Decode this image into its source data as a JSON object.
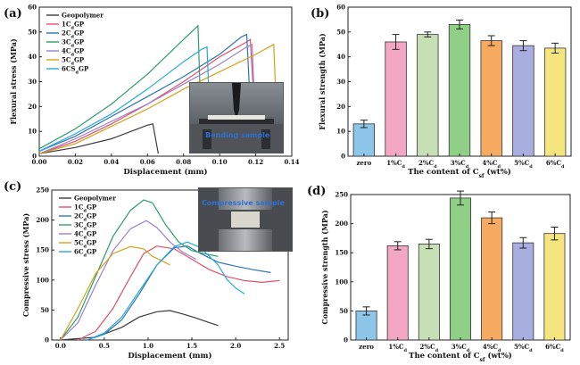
{
  "colors": {
    "zero": "#3a3a3a",
    "c1": "#e0506a",
    "c2": "#2c74b8",
    "c3": "#2e9d6a",
    "c4": "#9b7fd0",
    "c5": "#d6a21a",
    "c6": "#29a9d8",
    "bar_zero": "#8ec6ea",
    "bar_1": "#f4a7c4",
    "bar_2": "#c6dfb4",
    "bar_3": "#8fcf86",
    "bar_4": "#f6aa62",
    "bar_5": "#a9aee0",
    "bar_6": "#f5e57e"
  },
  "photos": {
    "a_label": "Bending sample",
    "c_label": "Compressive sample"
  },
  "chart_data": [
    {
      "panel": "(a)",
      "type": "line",
      "xlabel": "Displacement (mm)",
      "ylabel": "Flexural stress (MPa)",
      "xlim": [
        0,
        0.14
      ],
      "ylim": [
        0,
        60
      ],
      "xticks": [
        "0.00",
        "0.02",
        "0.04",
        "0.06",
        "0.08",
        "0.10",
        "0.12",
        "0.14"
      ],
      "yticks": [
        "0",
        "10",
        "20",
        "30",
        "40",
        "50",
        "60"
      ],
      "legend_position": "top-left",
      "series": [
        {
          "name": "Geopolymer",
          "color_key": "zero",
          "points": [
            [
              0,
              1
            ],
            [
              0.02,
              3.5
            ],
            [
              0.04,
              7
            ],
            [
              0.06,
              12.5
            ],
            [
              0.063,
              13
            ],
            [
              0.066,
              1
            ]
          ]
        },
        {
          "name": "1C_dGP",
          "color_key": "c1",
          "points": [
            [
              0,
              1
            ],
            [
              0.02,
              6
            ],
            [
              0.04,
              13
            ],
            [
              0.06,
              21
            ],
            [
              0.08,
              30
            ],
            [
              0.1,
              40
            ],
            [
              0.115,
              46
            ],
            [
              0.117,
              47
            ],
            [
              0.12,
              10
            ]
          ]
        },
        {
          "name": "2C_dGP",
          "color_key": "c2",
          "points": [
            [
              0,
              2
            ],
            [
              0.02,
              8
            ],
            [
              0.04,
              16
            ],
            [
              0.06,
              24
            ],
            [
              0.08,
              32
            ],
            [
              0.1,
              41
            ],
            [
              0.112,
              48
            ],
            [
              0.115,
              49
            ],
            [
              0.118,
              6
            ]
          ]
        },
        {
          "name": "3C_dGP",
          "color_key": "c3",
          "points": [
            [
              0,
              3
            ],
            [
              0.02,
              11
            ],
            [
              0.04,
              21
            ],
            [
              0.06,
              33
            ],
            [
              0.07,
              40
            ],
            [
              0.08,
              47
            ],
            [
              0.088,
              52.5
            ],
            [
              0.09,
              7
            ]
          ]
        },
        {
          "name": "4C_dGP",
          "color_key": "c4",
          "points": [
            [
              0,
              1
            ],
            [
              0.02,
              7
            ],
            [
              0.04,
              14
            ],
            [
              0.06,
              21
            ],
            [
              0.08,
              29
            ],
            [
              0.1,
              37
            ],
            [
              0.115,
              44
            ],
            [
              0.118,
              45
            ],
            [
              0.12,
              9
            ]
          ]
        },
        {
          "name": "5C_dGP",
          "color_key": "c5",
          "points": [
            [
              0,
              1
            ],
            [
              0.02,
              5
            ],
            [
              0.04,
              12
            ],
            [
              0.06,
              19
            ],
            [
              0.08,
              27
            ],
            [
              0.1,
              34
            ],
            [
              0.12,
              41
            ],
            [
              0.13,
              45
            ],
            [
              0.132,
              8
            ]
          ]
        },
        {
          "name": "6CS_dGP",
          "color_key": "c6",
          "points": [
            [
              0,
              2
            ],
            [
              0.02,
              9
            ],
            [
              0.04,
              17
            ],
            [
              0.06,
              27
            ],
            [
              0.08,
              38
            ],
            [
              0.09,
              43
            ],
            [
              0.093,
              44
            ],
            [
              0.095,
              8
            ]
          ]
        }
      ]
    },
    {
      "panel": "(b)",
      "type": "bar",
      "xlabel": "The content of C_sf (wt%)",
      "ylabel": "Flexural strength (MPa)",
      "ylim": [
        0,
        60
      ],
      "yticks": [
        "0",
        "10",
        "20",
        "30",
        "40",
        "50",
        "60"
      ],
      "categories": [
        "zero",
        "1%C_d",
        "2%C_d",
        "3%C_d",
        "4%C_d",
        "5%C_d",
        "6%C_d"
      ],
      "values": [
        13,
        46,
        49,
        53,
        46.5,
        44.5,
        43.5
      ],
      "errors": [
        1.5,
        3,
        1,
        1.8,
        2,
        2,
        2
      ],
      "color_keys": [
        "bar_zero",
        "bar_1",
        "bar_2",
        "bar_3",
        "bar_4",
        "bar_5",
        "bar_6"
      ]
    },
    {
      "panel": "(c)",
      "type": "line",
      "xlabel": "Displacement (mm)",
      "ylabel": "Compressive stress (MPa)",
      "xlim": [
        -0.1,
        2.6
      ],
      "ylim": [
        0,
        260
      ],
      "xticks": [
        "0.0",
        "0.5",
        "1.0",
        "1.5",
        "2.0",
        "2.5"
      ],
      "xtick_values": [
        0,
        0.5,
        1.0,
        1.5,
        2.0,
        2.5
      ],
      "yticks": [
        "0",
        "50",
        "100",
        "150",
        "200",
        "250"
      ],
      "legend_position": "top-left",
      "series": [
        {
          "name": "Geopolymer",
          "color_key": "zero",
          "points": [
            [
              0,
              0
            ],
            [
              0.4,
              5
            ],
            [
              0.7,
              22
            ],
            [
              0.9,
              40
            ],
            [
              1.1,
              49
            ],
            [
              1.25,
              51
            ],
            [
              1.4,
              45
            ],
            [
              1.55,
              38
            ],
            [
              1.7,
              30
            ],
            [
              1.8,
              25
            ]
          ]
        },
        {
          "name": "1C_dGP",
          "color_key": "c1",
          "points": [
            [
              0.2,
              0
            ],
            [
              0.4,
              15
            ],
            [
              0.6,
              55
            ],
            [
              0.8,
              110
            ],
            [
              0.95,
              150
            ],
            [
              1.1,
              163
            ],
            [
              1.3,
              158
            ],
            [
              1.5,
              140
            ],
            [
              1.7,
              122
            ],
            [
              1.9,
              110
            ],
            [
              2.1,
              103
            ],
            [
              2.3,
              100
            ],
            [
              2.5,
              103
            ]
          ]
        },
        {
          "name": "2C_dGP",
          "color_key": "c2",
          "points": [
            [
              0.3,
              0
            ],
            [
              0.5,
              10
            ],
            [
              0.7,
              35
            ],
            [
              0.9,
              80
            ],
            [
              1.1,
              130
            ],
            [
              1.3,
              160
            ],
            [
              1.45,
              163
            ],
            [
              1.6,
              150
            ],
            [
              1.8,
              135
            ],
            [
              2,
              128
            ],
            [
              2.2,
              122
            ],
            [
              2.4,
              117
            ]
          ]
        },
        {
          "name": "3C_dGP",
          "color_key": "c3",
          "points": [
            [
              0,
              0
            ],
            [
              0.2,
              40
            ],
            [
              0.4,
              110
            ],
            [
              0.6,
              180
            ],
            [
              0.8,
              225
            ],
            [
              0.95,
              243
            ],
            [
              1.05,
              238
            ],
            [
              1.2,
              200
            ],
            [
              1.35,
              170
            ],
            [
              1.5,
              155
            ],
            [
              1.7,
              148
            ],
            [
              1.8,
              145
            ]
          ]
        },
        {
          "name": "4C_dGP",
          "color_key": "c4",
          "points": [
            [
              0,
              0
            ],
            [
              0.2,
              30
            ],
            [
              0.4,
              95
            ],
            [
              0.6,
              155
            ],
            [
              0.8,
              193
            ],
            [
              0.98,
              207
            ],
            [
              1.1,
              195
            ],
            [
              1.25,
              170
            ],
            [
              1.4,
              152
            ],
            [
              1.55,
              140
            ]
          ]
        },
        {
          "name": "5C_dGP",
          "color_key": "c5",
          "points": [
            [
              0,
              0
            ],
            [
              0.2,
              55
            ],
            [
              0.4,
              115
            ],
            [
              0.6,
              150
            ],
            [
              0.8,
              162
            ],
            [
              0.95,
              158
            ],
            [
              1.05,
              145
            ],
            [
              1.15,
              138
            ],
            [
              1.25,
              130
            ]
          ]
        },
        {
          "name": "6C_dGP",
          "color_key": "c6",
          "points": [
            [
              0.3,
              0
            ],
            [
              0.5,
              12
            ],
            [
              0.7,
              40
            ],
            [
              0.9,
              85
            ],
            [
              1.1,
              130
            ],
            [
              1.3,
              162
            ],
            [
              1.45,
              170
            ],
            [
              1.6,
              160
            ],
            [
              1.8,
              130
            ],
            [
              1.9,
              105
            ],
            [
              2.0,
              90
            ],
            [
              2.1,
              80
            ]
          ]
        }
      ]
    },
    {
      "panel": "(d)",
      "type": "bar",
      "xlabel": "The content of C_sf (wt%)",
      "ylabel": "Compressive strength (MPa)",
      "ylim": [
        0,
        250
      ],
      "yticks": [
        "0",
        "50",
        "100",
        "150",
        "200",
        "250"
      ],
      "categories": [
        "zero",
        "1%C_d",
        "2%C_d",
        "3%C_d",
        "4%C_d",
        "5%C_d",
        "6%C_d"
      ],
      "values": [
        50,
        162,
        165,
        244,
        210,
        167,
        183
      ],
      "errors": [
        7,
        7,
        8,
        12,
        10,
        9,
        11
      ],
      "color_keys": [
        "bar_zero",
        "bar_1",
        "bar_2",
        "bar_3",
        "bar_4",
        "bar_5",
        "bar_6"
      ]
    }
  ]
}
